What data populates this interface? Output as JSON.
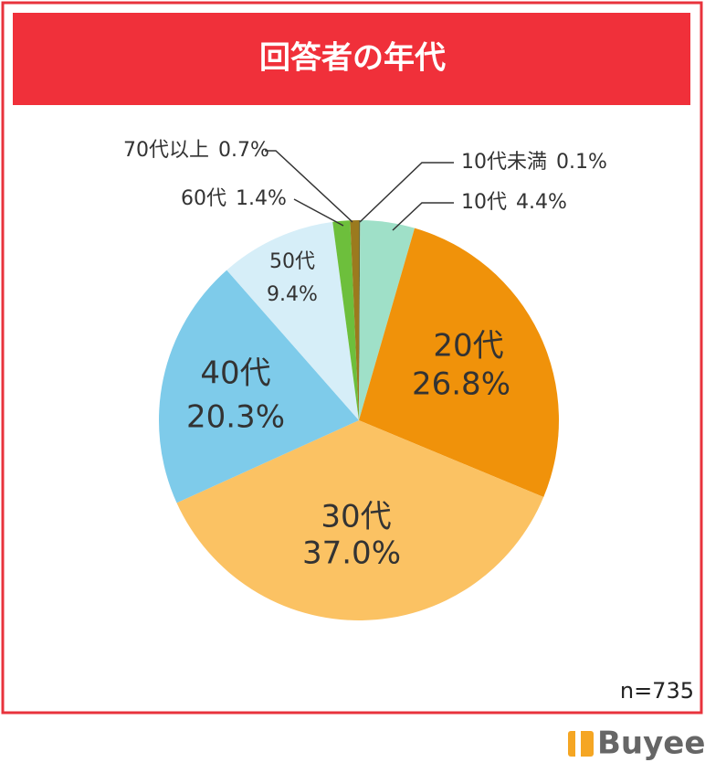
{
  "chart_data": {
    "type": "pie",
    "title": "回答者の年代",
    "note": "n=735",
    "categories": [
      "10代未満",
      "10代",
      "20代",
      "30代",
      "40代",
      "50代",
      "60代",
      "70代以上"
    ],
    "values": [
      0.1,
      4.4,
      26.8,
      37.0,
      20.3,
      9.4,
      1.4,
      0.7
    ],
    "value_labels": [
      "0.1%",
      "4.4%",
      "26.8%",
      "37.0%",
      "20.3%",
      "9.4%",
      "1.4%",
      "0.7%"
    ],
    "colors": [
      "#6b6b3a",
      "#9fe0c8",
      "#f0920a",
      "#fbc263",
      "#7ecbea",
      "#d6eef8",
      "#6dbf3c",
      "#9b7a1e"
    ]
  },
  "logo": "Buyee"
}
